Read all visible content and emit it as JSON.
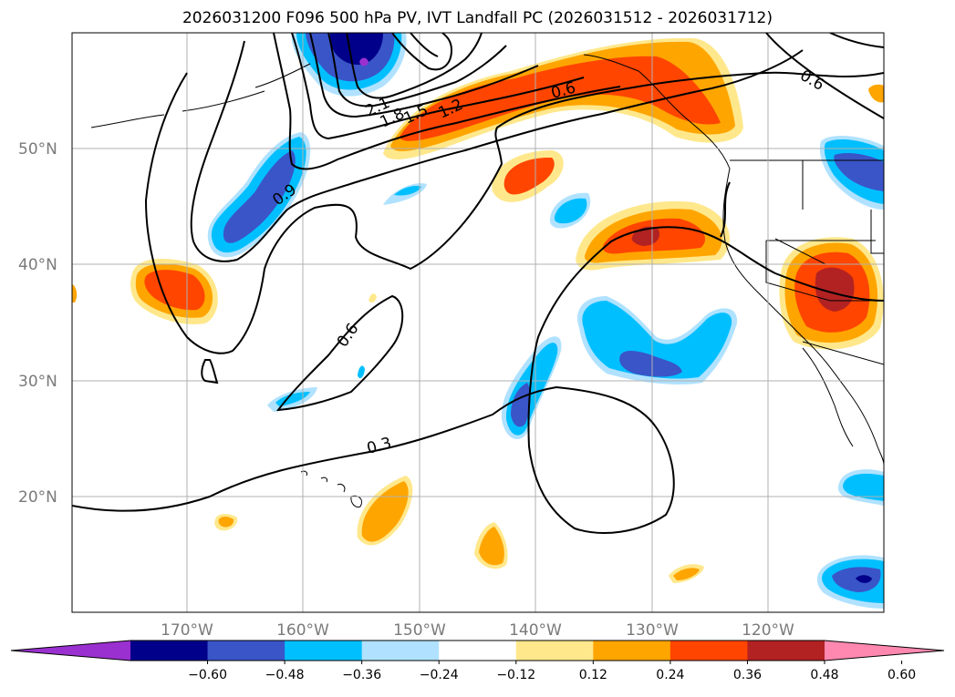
{
  "title": "2026031200 F096 500 hPa PV, IVT Landfall PC (2026031512 - 2026031712)",
  "lat_labels": [
    "50°N",
    "40°N",
    "30°N",
    "20°N"
  ],
  "lon_labels": [
    "170°W",
    "160°W",
    "150°W",
    "140°W",
    "130°W",
    "120°W"
  ],
  "contour_labels": [
    "2.1",
    "1.8",
    "1.5",
    "1.2",
    "0.9",
    "0.6",
    "0.6",
    "0.6",
    "0.3"
  ],
  "colorbar": {
    "ticks": [
      "−0.60",
      "−0.48",
      "−0.36",
      "−0.24",
      "−0.12",
      "0.12",
      "0.24",
      "0.36",
      "0.48",
      "0.60"
    ],
    "colors": [
      "#9b30d0",
      "#00008b",
      "#3a55c8",
      "#00bfff",
      "#b0e2ff",
      "#ffffff",
      "#ffe88c",
      "#ffa500",
      "#ff4500",
      "#b22222",
      "#ff88b0"
    ]
  },
  "fill_colors": {
    "neg_light": "#b0e2ff",
    "neg_mid": "#00bfff",
    "neg_strong": "#3a55c8",
    "neg_max": "#00008b",
    "neg_extreme": "#9b30d0",
    "pos_light": "#ffe88c",
    "pos_mid": "#ffa500",
    "pos_strong": "#ff4500",
    "pos_max": "#b22222"
  }
}
